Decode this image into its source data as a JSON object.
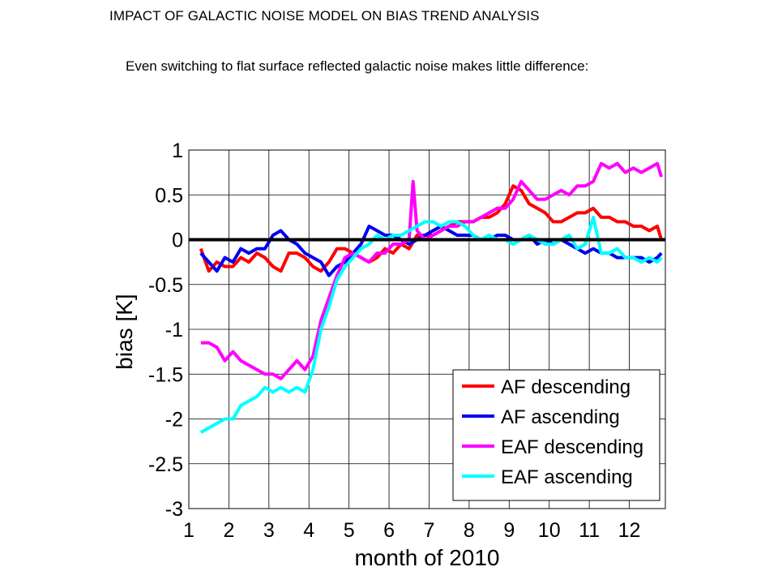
{
  "slide": {
    "title": "IMPACT OF GALACTIC NOISE MODEL ON BIAS TREND ANALYSIS",
    "text": "Even switching to flat surface reflected galactic noise makes little difference:"
  },
  "chart_data": {
    "type": "line",
    "title": "",
    "xlabel": "month of 2010",
    "ylabel": "bias [K]",
    "xlim": [
      1,
      12.9
    ],
    "ylim": [
      -3,
      1
    ],
    "xticks": [
      1,
      2,
      3,
      4,
      5,
      6,
      7,
      8,
      9,
      10,
      11,
      12
    ],
    "xtick_labels": [
      "1",
      "2",
      "3",
      "4",
      "5",
      "6",
      "7",
      "8",
      "9",
      "10",
      "11",
      "12"
    ],
    "yticks": [
      1,
      0.5,
      0,
      -0.5,
      -1,
      -1.5,
      -2,
      -2.5,
      -3
    ],
    "ytick_labels": [
      "1",
      "0.5",
      "0",
      "-0.5",
      "-1",
      "-1.5",
      "-2",
      "-2.5",
      "-3"
    ],
    "grid": true,
    "legend": "bottom-right",
    "reference_line": {
      "y": 0,
      "color": "#000000"
    },
    "series": [
      {
        "name": "AF descending",
        "color": "#ff0000",
        "x": [
          1.3,
          1.5,
          1.7,
          1.9,
          2.1,
          2.3,
          2.5,
          2.7,
          2.9,
          3.1,
          3.3,
          3.5,
          3.7,
          3.9,
          4.1,
          4.3,
          4.5,
          4.7,
          4.9,
          5.1,
          5.3,
          5.5,
          5.7,
          5.9,
          6.1,
          6.3,
          6.5,
          6.7,
          6.9,
          7.1,
          7.3,
          7.5,
          7.7,
          7.9,
          8.1,
          8.3,
          8.5,
          8.7,
          8.9,
          9.1,
          9.3,
          9.5,
          9.7,
          9.9,
          10.1,
          10.3,
          10.5,
          10.7,
          10.9,
          11.1,
          11.3,
          11.5,
          11.7,
          11.9,
          12.1,
          12.3,
          12.5,
          12.7,
          12.8
        ],
        "y": [
          -0.1,
          -0.35,
          -0.25,
          -0.3,
          -0.3,
          -0.2,
          -0.25,
          -0.15,
          -0.2,
          -0.3,
          -0.35,
          -0.15,
          -0.15,
          -0.2,
          -0.3,
          -0.35,
          -0.25,
          -0.1,
          -0.1,
          -0.15,
          -0.2,
          -0.25,
          -0.2,
          -0.1,
          -0.15,
          -0.05,
          -0.1,
          0.05,
          0.05,
          0.05,
          0.1,
          0.15,
          0.2,
          0.2,
          0.2,
          0.25,
          0.25,
          0.3,
          0.4,
          0.6,
          0.55,
          0.4,
          0.35,
          0.3,
          0.2,
          0.2,
          0.25,
          0.3,
          0.3,
          0.35,
          0.25,
          0.25,
          0.2,
          0.2,
          0.15,
          0.15,
          0.1,
          0.15,
          0.0
        ]
      },
      {
        "name": "AF ascending",
        "color": "#0000ee",
        "x": [
          1.3,
          1.5,
          1.7,
          1.9,
          2.1,
          2.3,
          2.5,
          2.7,
          2.9,
          3.1,
          3.3,
          3.5,
          3.7,
          3.9,
          4.1,
          4.3,
          4.5,
          4.7,
          4.9,
          5.1,
          5.3,
          5.5,
          5.7,
          5.9,
          6.1,
          6.3,
          6.5,
          6.7,
          6.9,
          7.1,
          7.3,
          7.5,
          7.7,
          7.9,
          8.1,
          8.3,
          8.5,
          8.7,
          8.9,
          9.1,
          9.3,
          9.5,
          9.7,
          9.9,
          10.1,
          10.3,
          10.5,
          10.7,
          10.9,
          11.1,
          11.3,
          11.5,
          11.7,
          11.9,
          12.1,
          12.3,
          12.5,
          12.7,
          12.8
        ],
        "y": [
          -0.15,
          -0.25,
          -0.35,
          -0.2,
          -0.25,
          -0.1,
          -0.15,
          -0.1,
          -0.1,
          0.05,
          0.1,
          0.0,
          -0.05,
          -0.15,
          -0.2,
          -0.25,
          -0.4,
          -0.3,
          -0.25,
          -0.15,
          -0.05,
          0.15,
          0.1,
          0.05,
          0.05,
          0.0,
          -0.05,
          0.0,
          0.05,
          0.1,
          0.15,
          0.1,
          0.05,
          0.05,
          0.05,
          0.0,
          0.0,
          0.05,
          0.05,
          0.0,
          0.0,
          0.05,
          -0.05,
          0.0,
          -0.05,
          0.0,
          -0.05,
          -0.1,
          -0.15,
          -0.1,
          -0.15,
          -0.15,
          -0.2,
          -0.2,
          -0.2,
          -0.2,
          -0.25,
          -0.2,
          -0.15
        ]
      },
      {
        "name": "EAF descending",
        "color": "#ff00ff",
        "x": [
          1.3,
          1.5,
          1.7,
          1.9,
          2.1,
          2.3,
          2.5,
          2.7,
          2.9,
          3.1,
          3.3,
          3.5,
          3.7,
          3.9,
          4.1,
          4.3,
          4.5,
          4.7,
          4.9,
          5.1,
          5.3,
          5.5,
          5.7,
          5.9,
          6.1,
          6.3,
          6.5,
          6.6,
          6.7,
          6.9,
          7.1,
          7.3,
          7.5,
          7.7,
          7.9,
          8.1,
          8.3,
          8.5,
          8.7,
          8.9,
          9.1,
          9.3,
          9.5,
          9.7,
          9.9,
          10.1,
          10.3,
          10.5,
          10.7,
          10.9,
          11.1,
          11.3,
          11.5,
          11.7,
          11.9,
          12.1,
          12.3,
          12.5,
          12.7,
          12.8
        ],
        "y": [
          -1.15,
          -1.15,
          -1.2,
          -1.35,
          -1.25,
          -1.35,
          -1.4,
          -1.45,
          -1.5,
          -1.5,
          -1.55,
          -1.45,
          -1.35,
          -1.45,
          -1.3,
          -0.9,
          -0.65,
          -0.4,
          -0.2,
          -0.15,
          -0.2,
          -0.25,
          -0.15,
          -0.15,
          -0.05,
          -0.05,
          0.0,
          0.65,
          0.1,
          0.0,
          0.05,
          0.1,
          0.15,
          0.15,
          0.2,
          0.2,
          0.25,
          0.3,
          0.35,
          0.35,
          0.45,
          0.65,
          0.55,
          0.45,
          0.45,
          0.5,
          0.55,
          0.5,
          0.6,
          0.6,
          0.65,
          0.85,
          0.8,
          0.85,
          0.75,
          0.8,
          0.75,
          0.8,
          0.85,
          0.7
        ]
      },
      {
        "name": "EAF ascending",
        "color": "#00ffff",
        "x": [
          1.3,
          1.5,
          1.7,
          1.9,
          2.1,
          2.3,
          2.5,
          2.7,
          2.9,
          3.1,
          3.3,
          3.5,
          3.7,
          3.9,
          4.1,
          4.3,
          4.5,
          4.7,
          4.9,
          5.1,
          5.3,
          5.5,
          5.7,
          5.9,
          6.1,
          6.3,
          6.5,
          6.7,
          6.9,
          7.1,
          7.3,
          7.5,
          7.7,
          7.9,
          8.1,
          8.3,
          8.5,
          8.7,
          8.9,
          9.1,
          9.3,
          9.5,
          9.7,
          9.9,
          10.1,
          10.3,
          10.5,
          10.7,
          10.9,
          11.1,
          11.3,
          11.5,
          11.7,
          11.9,
          12.1,
          12.3,
          12.5,
          12.7,
          12.8
        ],
        "y": [
          -2.15,
          -2.1,
          -2.05,
          -2.0,
          -2.0,
          -1.85,
          -1.8,
          -1.75,
          -1.65,
          -1.7,
          -1.65,
          -1.7,
          -1.65,
          -1.7,
          -1.45,
          -1.0,
          -0.75,
          -0.45,
          -0.3,
          -0.2,
          -0.1,
          -0.05,
          0.05,
          0.0,
          0.05,
          0.05,
          0.1,
          0.15,
          0.2,
          0.2,
          0.15,
          0.2,
          0.2,
          0.15,
          0.05,
          0.0,
          0.05,
          0.0,
          0.0,
          -0.05,
          0.0,
          0.05,
          0.0,
          -0.05,
          -0.05,
          0.0,
          0.05,
          -0.1,
          -0.05,
          0.25,
          -0.15,
          -0.15,
          -0.1,
          -0.2,
          -0.2,
          -0.25,
          -0.2,
          -0.25,
          -0.2
        ]
      }
    ]
  }
}
